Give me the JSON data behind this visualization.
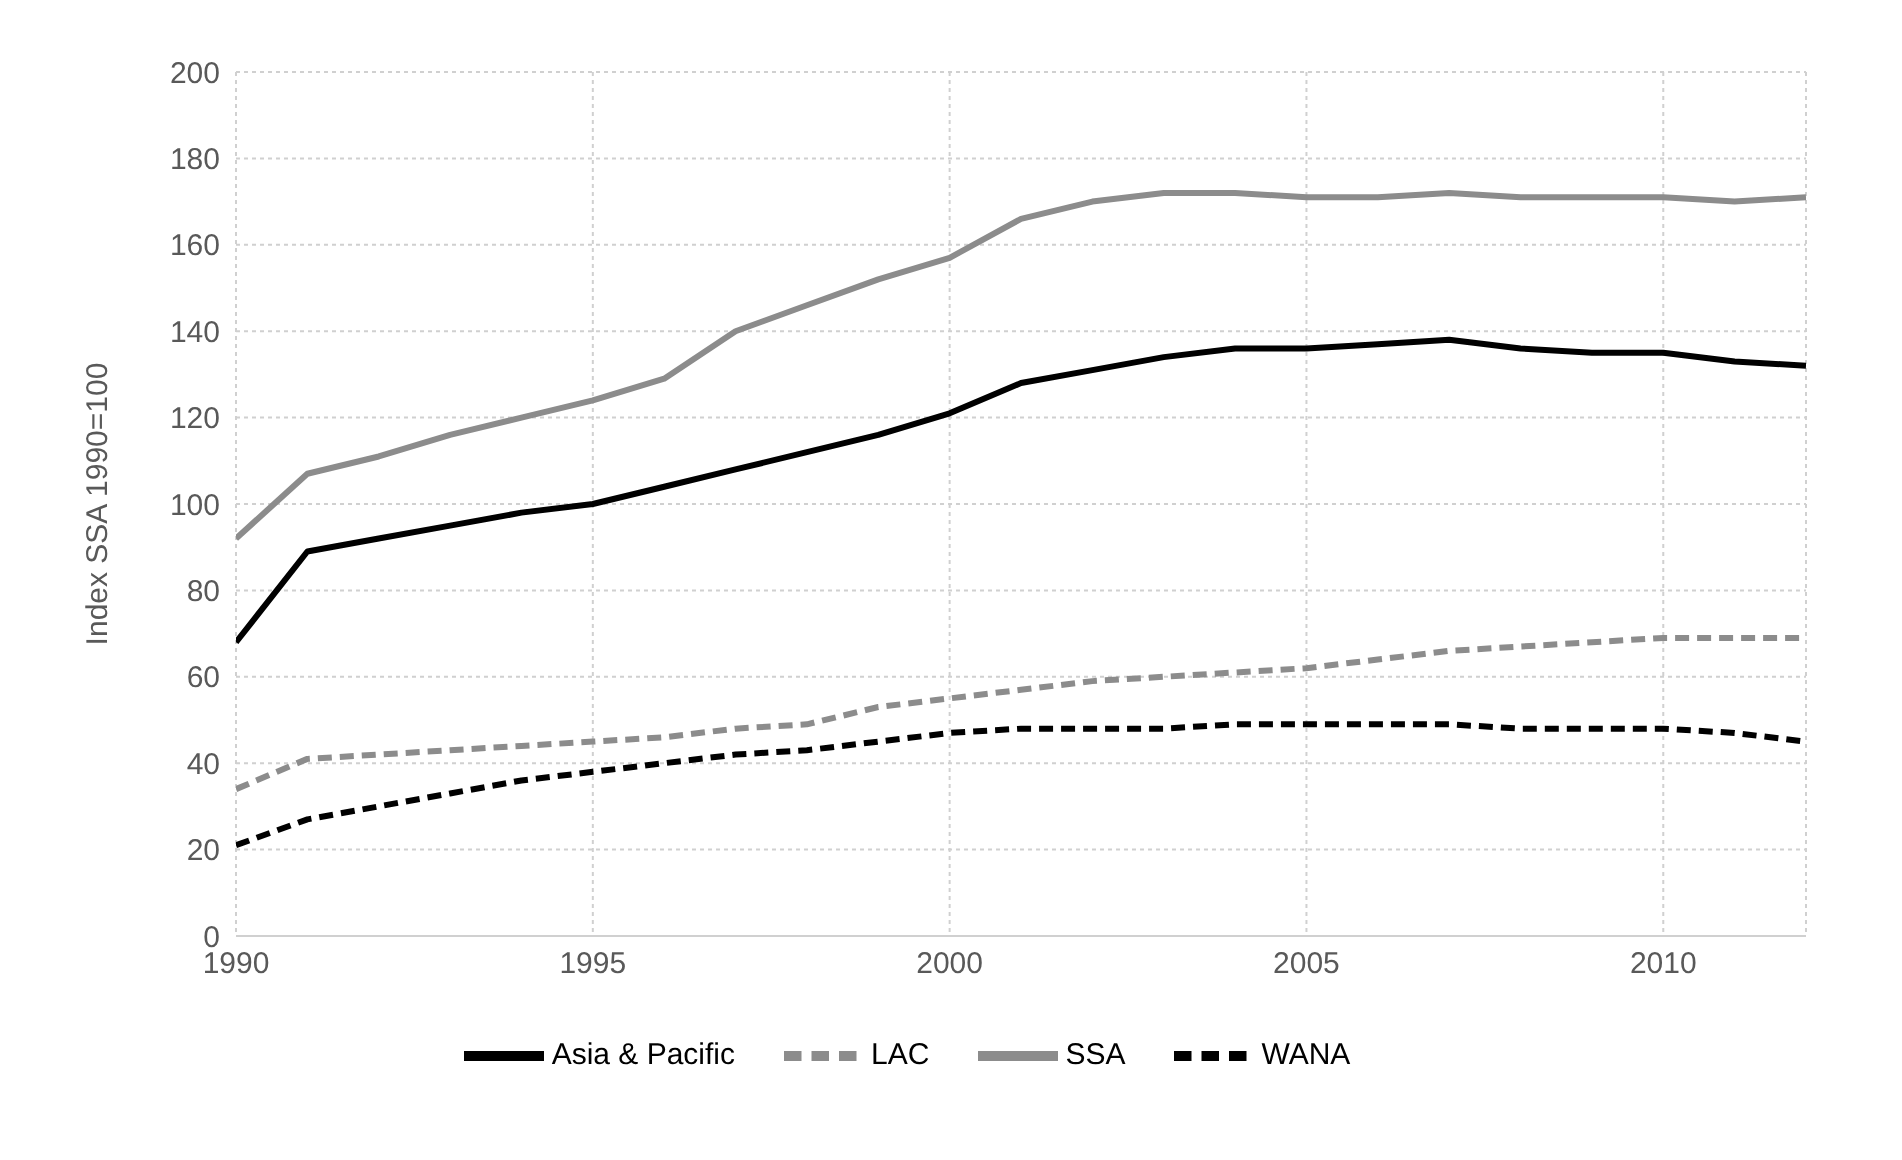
{
  "chart_data": {
    "type": "line",
    "ylabel": "Index SSA 1990=100",
    "x": [
      1990,
      1991,
      1992,
      1993,
      1994,
      1995,
      1996,
      1997,
      1998,
      1999,
      2000,
      2001,
      2002,
      2003,
      2004,
      2005,
      2006,
      2007,
      2008,
      2009,
      2010,
      2011,
      2012
    ],
    "series": [
      {
        "name": "Asia & Pacific",
        "color": "#000000",
        "line_style": "solid",
        "values": [
          68,
          89,
          92,
          95,
          98,
          100,
          104,
          108,
          112,
          116,
          121,
          128,
          131,
          134,
          136,
          136,
          137,
          138,
          136,
          135,
          135,
          133,
          132
        ]
      },
      {
        "name": "LAC",
        "color": "#8c8c8c",
        "line_style": "dashed",
        "values": [
          34,
          41,
          42,
          43,
          44,
          45,
          46,
          48,
          49,
          53,
          55,
          57,
          59,
          60,
          61,
          62,
          64,
          66,
          67,
          68,
          69,
          69,
          69
        ]
      },
      {
        "name": "SSA",
        "color": "#8c8c8c",
        "line_style": "solid",
        "values": [
          92,
          107,
          111,
          116,
          120,
          124,
          129,
          140,
          146,
          152,
          157,
          166,
          170,
          172,
          172,
          171,
          171,
          172,
          171,
          171,
          171,
          170,
          171
        ]
      },
      {
        "name": "WANA",
        "color": "#000000",
        "line_style": "dashed",
        "values": [
          21,
          27,
          30,
          33,
          36,
          38,
          40,
          42,
          43,
          45,
          47,
          48,
          48,
          48,
          49,
          49,
          49,
          49,
          48,
          48,
          48,
          47,
          45
        ]
      }
    ],
    "xlim": [
      1990,
      2012
    ],
    "xticks": [
      1990,
      1995,
      2000,
      2005,
      2010
    ],
    "ylim": [
      0,
      200
    ],
    "yticks": [
      0,
      20,
      40,
      60,
      80,
      100,
      120,
      140,
      160,
      180,
      200
    ],
    "grid": true,
    "legend": "bottom",
    "marker": "none"
  }
}
